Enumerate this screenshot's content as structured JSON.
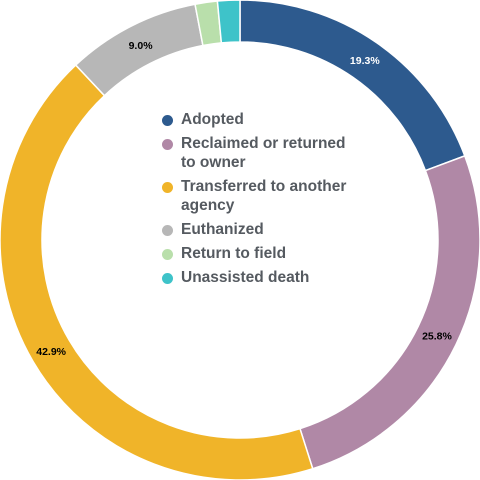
{
  "chart_data": {
    "type": "pie",
    "donut": true,
    "slices": [
      {
        "label": "Adopted",
        "value": 19.3,
        "display": "19.3%",
        "color": "#2d5a8e",
        "label_color": "#ffffff"
      },
      {
        "label": "Reclaimed or returned to owner",
        "value": 25.8,
        "display": "25.8%",
        "color": "#b088a6",
        "label_color": "#000000"
      },
      {
        "label": "Transferred to another agency",
        "value": 42.9,
        "display": "42.9%",
        "color": "#f0b429",
        "label_color": "#000000"
      },
      {
        "label": "Euthanized",
        "value": 9.0,
        "display": "9.0%",
        "color": "#b7b7b7",
        "label_color": "#000000"
      },
      {
        "label": "Return to field",
        "value": 1.5,
        "display": "",
        "color": "#b9dfab",
        "label_color": "#000000"
      },
      {
        "label": "Unassisted death",
        "value": 1.5,
        "display": "",
        "color": "#3ec3c9",
        "label_color": "#000000"
      }
    ],
    "legend_placement": "center"
  },
  "legend": {
    "items": [
      {
        "label": "Adopted",
        "color": "#2d5a8e"
      },
      {
        "label": "Reclaimed or returned to owner",
        "color": "#b088a6"
      },
      {
        "label": "Transferred to another agency",
        "color": "#f0b429"
      },
      {
        "label": "Euthanized",
        "color": "#b7b7b7"
      },
      {
        "label": "Return to field",
        "color": "#b9dfab"
      },
      {
        "label": "Unassisted death",
        "color": "#3ec3c9"
      }
    ]
  }
}
